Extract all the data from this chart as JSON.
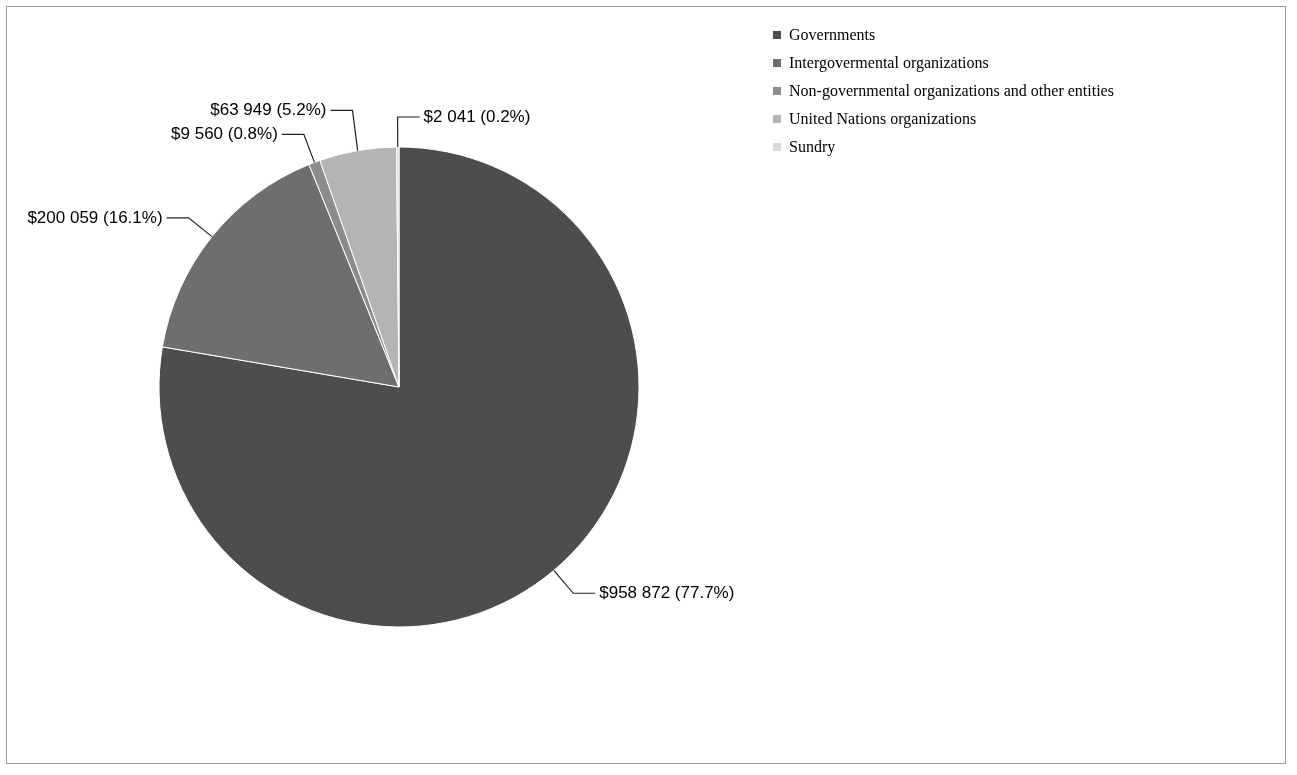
{
  "chart_data": {
    "type": "pie",
    "categories": [
      "Governments",
      "Intergovermental organizations",
      "Non-governmental organizations and other entities",
      "United Nations organizations",
      "Sundry"
    ],
    "values": [
      958872,
      200059,
      9560,
      63949,
      2041
    ],
    "value_labels": [
      "$958 872 (77.7%)",
      "$200 059 (16.1%)",
      "$9 560 (0.8%)",
      "$63 949 (5.2%)",
      "$2 041 (0.2%)"
    ],
    "colors": [
      "#4d4d4d",
      "#6e6e6e",
      "#8c8c8c",
      "#b4b4b4",
      "#d9d9d9"
    ],
    "legend": "right"
  }
}
